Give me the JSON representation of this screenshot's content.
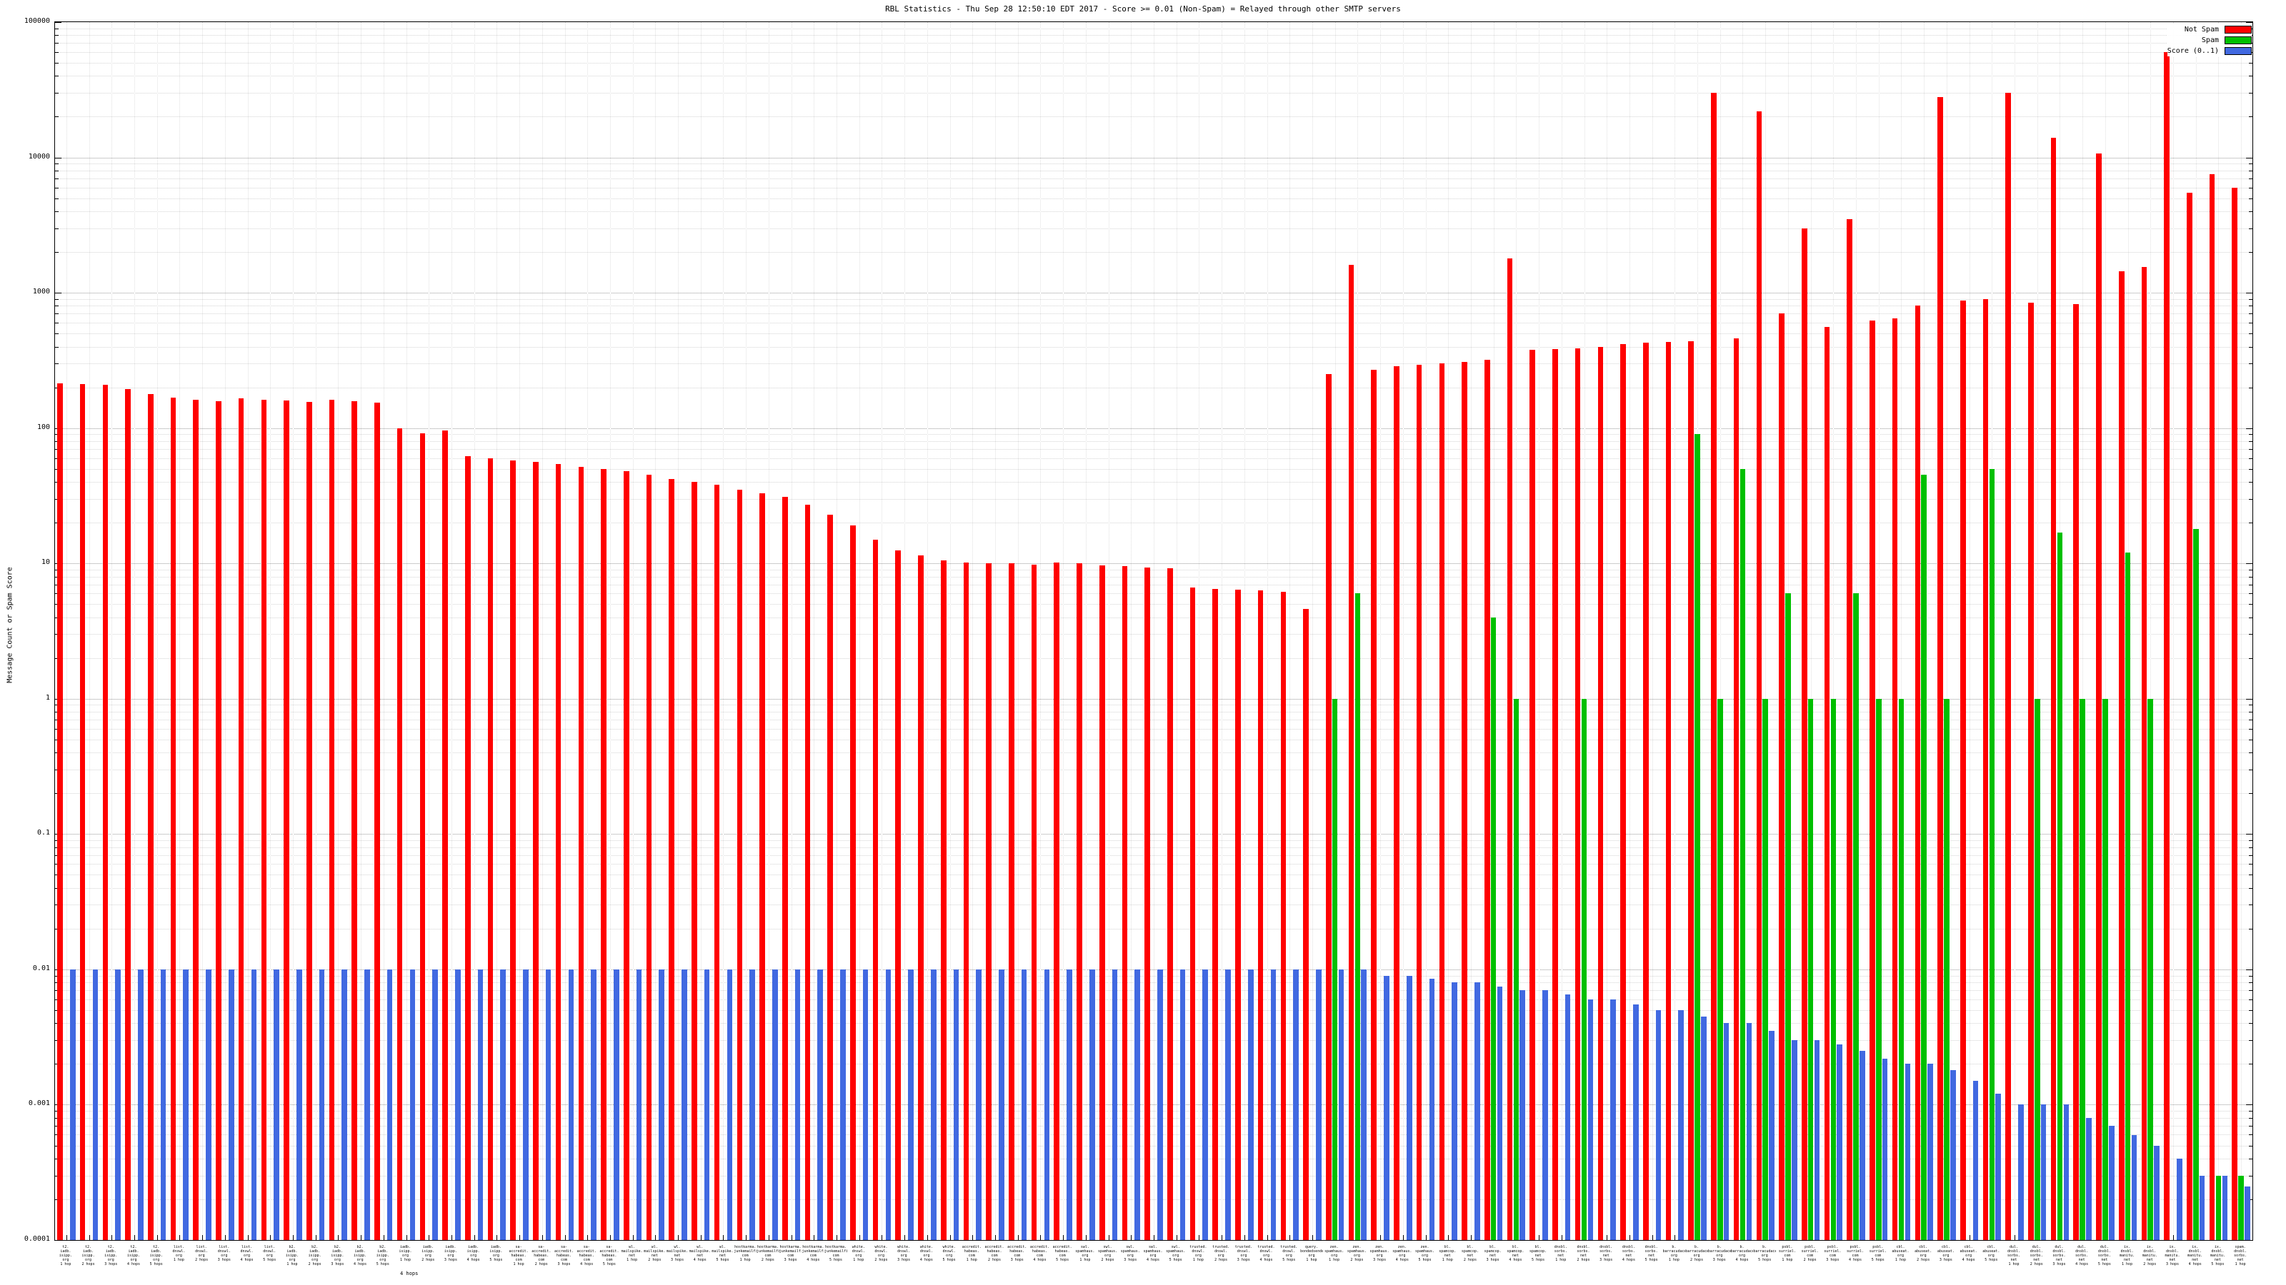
{
  "legend": {
    "items": [
      {
        "label": "Not Spam"
      },
      {
        "label": "Spam"
      },
      {
        "label": "Score (0..1)"
      }
    ]
  },
  "chart_data": {
    "type": "bar",
    "title": "RBL Statistics - Thu Sep 28 12:50:10 EDT 2017 - Score >= 0.01 (Non-Spam) = Relayed through other SMTP servers",
    "ylabel": "Message Count or Spam Score",
    "xlabel": "",
    "footnote": "4 hops",
    "log_scale": true,
    "grid": true,
    "legend_position": "top-right",
    "ylim": [
      0.0001,
      100000
    ],
    "y_ticks": [
      "100000",
      "10000",
      "1000",
      "100",
      "10",
      "1",
      "0.1",
      "0.01",
      "0.001",
      "0.0001"
    ],
    "categories": [
      "t2.iadb.isipp.org 1 hop",
      "t2.iadb.isipp.org 2 hops",
      "t2.iadb.isipp.org 3 hops",
      "t2.iadb.isipp.org 4 hops",
      "t2.iadb.isipp.org 5 hops",
      "list.dnswl.org 1 hop",
      "list.dnswl.org 2 hops",
      "list.dnswl.org 3 hops",
      "list.dnswl.org 4 hops",
      "list.dnswl.org 5 hops",
      "b2.iadb.isipp.org 1 hop",
      "b2.iadb.isipp.org 2 hops",
      "b2.iadb.isipp.org 3 hops",
      "b2.iadb.isipp.org 4 hops",
      "b2.iadb.isipp.org 5 hops",
      "iadb.isipp.org 1 hop",
      "iadb.isipp.org 2 hops",
      "iadb.isipp.org 3 hops",
      "iadb.isipp.org 4 hops",
      "iadb.isipp.org 5 hops",
      "sa-accredit.habeas.com 1 hop",
      "sa-accredit.habeas.com 2 hops",
      "sa-accredit.habeas.com 3 hops",
      "sa-accredit.habeas.com 4 hops",
      "sa-accredit.habeas.com 5 hops",
      "wl.mailspike.net 1 hop",
      "wl.mailspike.net 2 hops",
      "wl.mailspike.net 3 hops",
      "wl.mailspike.net 4 hops",
      "wl.mailspike.net 5 hops",
      "hostkarma.junkemailfilter.com 1 hop",
      "hostkarma.junkemailfilter.com 2 hops",
      "hostkarma.junkemailfilter.com 3 hops",
      "hostkarma.junkemailfilter.com 4 hops",
      "hostkarma.junkemailfilter.com 5 hops",
      "white.dnswl.org 1 hop",
      "white.dnswl.org 2 hops",
      "white.dnswl.org 3 hops",
      "white.dnswl.org 4 hops",
      "white.dnswl.org 5 hops",
      "accredit.habeas.com 1 hop",
      "accredit.habeas.com 2 hops",
      "accredit.habeas.com 3 hops",
      "accredit.habeas.com 4 hops",
      "accredit.habeas.com 5 hops",
      "swl.spamhaus.org 1 hop",
      "swl.spamhaus.org 2 hops",
      "swl.spamhaus.org 3 hops",
      "swl.spamhaus.org 4 hops",
      "swl.spamhaus.org 5 hops",
      "trusted.dnswl.org 1 hop",
      "trusted.dnswl.org 2 hops",
      "trusted.dnswl.org 3 hops",
      "trusted.dnswl.org 4 hops",
      "trusted.dnswl.org 5 hops",
      "query.bondedsender.org 1 hop",
      "zen.spamhaus.org 1 hop",
      "zen.spamhaus.org 2 hops",
      "zen.spamhaus.org 3 hops",
      "zen.spamhaus.org 4 hops",
      "zen.spamhaus.org 5 hops",
      "bl.spamcop.net 1 hop",
      "bl.spamcop.net 2 hops",
      "bl.spamcop.net 3 hops",
      "bl.spamcop.net 4 hops",
      "bl.spamcop.net 5 hops",
      "dnsbl.sorbs.net 1 hop",
      "dnsbl.sorbs.net 2 hops",
      "dnsbl.sorbs.net 3 hops",
      "dnsbl.sorbs.net 4 hops",
      "dnsbl.sorbs.net 5 hops",
      "b.barracudacentral.org 1 hop",
      "b.barracudacentral.org 2 hops",
      "b.barracudacentral.org 3 hops",
      "b.barracudacentral.org 4 hops",
      "b.barracudacentral.org 5 hops",
      "psbl.surriel.com 1 hop",
      "psbl.surriel.com 2 hops",
      "psbl.surriel.com 3 hops",
      "psbl.surriel.com 4 hops",
      "psbl.surriel.com 5 hops",
      "cbl.abuseat.org 1 hop",
      "cbl.abuseat.org 2 hops",
      "cbl.abuseat.org 3 hops",
      "cbl.abuseat.org 4 hops",
      "cbl.abuseat.org 5 hops",
      "dul.dnsbl.sorbs.net 1 hop",
      "dul.dnsbl.sorbs.net 2 hops",
      "dul.dnsbl.sorbs.net 3 hops",
      "dul.dnsbl.sorbs.net 4 hops",
      "dul.dnsbl.sorbs.net 5 hops",
      "ix.dnsbl.manitu.net 1 hop",
      "ix.dnsbl.manitu.net 2 hops",
      "ix.dnsbl.manitu.net 3 hops",
      "ix.dnsbl.manitu.net 4 hops",
      "ix.dnsbl.manitu.net 5 hops",
      "spam.dnsbl.sorbs.net 1 hop"
    ],
    "series": [
      {
        "name": "Not Spam",
        "key": "not-spam",
        "color": "#ff0000",
        "values": [
          215,
          212,
          208,
          195,
          178,
          168,
          162,
          158,
          166,
          162,
          160,
          157,
          162,
          158,
          155,
          100,
          92,
          96,
          62,
          60,
          58,
          56,
          54,
          52,
          50,
          48,
          45,
          42,
          40,
          38,
          35,
          33,
          31,
          27,
          23,
          19,
          15,
          12.5,
          11.5,
          10.5,
          10.2,
          10,
          10,
          9.8,
          10.2,
          10,
          9.7,
          9.5,
          9.3,
          9.2,
          6.6,
          6.5,
          6.4,
          6.3,
          6.2,
          4.6,
          250,
          1600,
          270,
          285,
          295,
          300,
          310,
          320,
          1800,
          380,
          385,
          390,
          400,
          420,
          430,
          435,
          440,
          30000,
          460,
          22000,
          700,
          3000,
          560,
          3500,
          620,
          650,
          800,
          28000,
          880,
          900,
          30000,
          850,
          14000,
          820,
          10700,
          1450,
          1550,
          60000,
          5500,
          7500,
          6000
        ]
      },
      {
        "name": "Spam",
        "key": "spam",
        "color": "#00c000",
        "values": [
          null,
          null,
          null,
          null,
          null,
          null,
          null,
          null,
          null,
          null,
          null,
          null,
          null,
          null,
          null,
          null,
          null,
          null,
          null,
          null,
          null,
          null,
          null,
          null,
          null,
          null,
          null,
          null,
          null,
          null,
          null,
          null,
          null,
          null,
          null,
          null,
          null,
          null,
          null,
          null,
          null,
          null,
          null,
          null,
          null,
          null,
          null,
          null,
          null,
          null,
          null,
          null,
          null,
          null,
          null,
          null,
          1,
          6,
          null,
          null,
          null,
          null,
          null,
          4,
          1,
          null,
          null,
          1,
          null,
          null,
          null,
          null,
          90,
          1,
          50,
          1,
          6,
          1,
          1,
          6,
          1,
          1,
          45,
          1,
          null,
          50,
          null,
          1,
          17,
          1,
          1,
          12,
          1,
          null,
          18,
          0.0003,
          0.0003
        ]
      },
      {
        "name": "Score (0..1)",
        "key": "score",
        "color": "#4169e1",
        "values": [
          0.01,
          0.01,
          0.01,
          0.01,
          0.01,
          0.01,
          0.01,
          0.01,
          0.01,
          0.01,
          0.01,
          0.01,
          0.01,
          0.01,
          0.01,
          0.01,
          0.01,
          0.01,
          0.01,
          0.01,
          0.01,
          0.01,
          0.01,
          0.01,
          0.01,
          0.01,
          0.01,
          0.01,
          0.01,
          0.01,
          0.01,
          0.01,
          0.01,
          0.01,
          0.01,
          0.01,
          0.01,
          0.01,
          0.01,
          0.01,
          0.01,
          0.01,
          0.01,
          0.01,
          0.01,
          0.01,
          0.01,
          0.01,
          0.01,
          0.01,
          0.01,
          0.01,
          0.01,
          0.01,
          0.01,
          0.01,
          0.01,
          0.01,
          0.009,
          0.009,
          0.0085,
          0.008,
          0.008,
          0.0075,
          0.007,
          0.007,
          0.0065,
          0.006,
          0.006,
          0.0055,
          0.005,
          0.005,
          0.0045,
          0.004,
          0.004,
          0.0035,
          0.003,
          0.003,
          0.0028,
          0.0025,
          0.0022,
          0.002,
          0.002,
          0.0018,
          0.0015,
          0.0012,
          0.001,
          0.001,
          0.001,
          0.0008,
          0.0007,
          0.0006,
          0.0005,
          0.0004,
          0.0003,
          0.0003,
          0.00025
        ]
      }
    ]
  }
}
